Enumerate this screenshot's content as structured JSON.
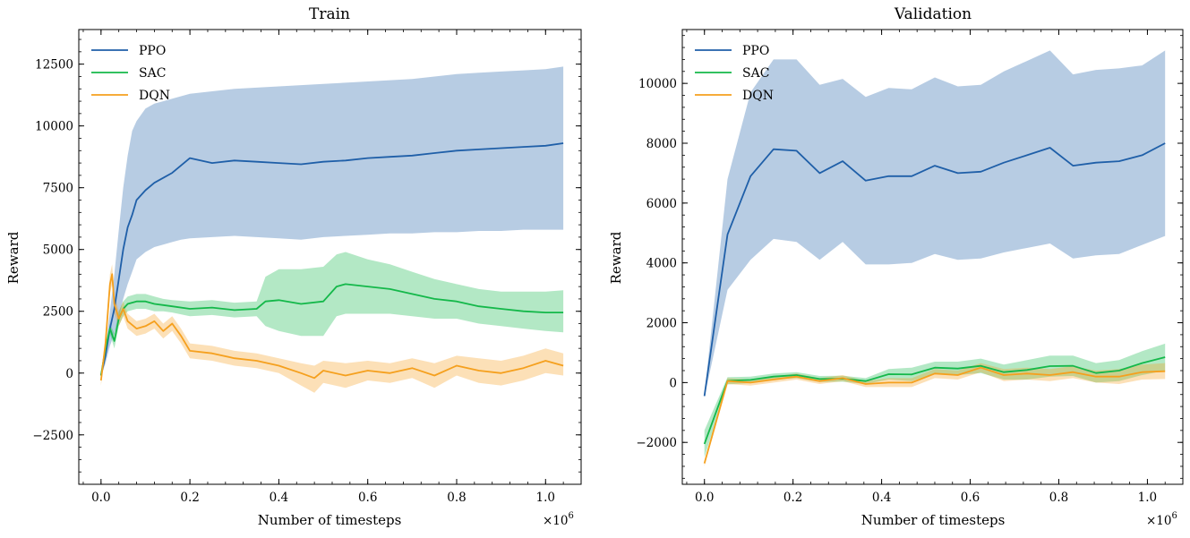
{
  "colors": {
    "PPO": "#1f5fa8",
    "SAC": "#14b84a",
    "DQN": "#f5a01e"
  },
  "chart_data": [
    {
      "type": "line",
      "title": "Train",
      "xlabel": "Number of timesteps",
      "ylabel": "Reward",
      "x_multiplier_label": "×10",
      "x_multiplier_exp": "6",
      "xlim": [
        -0.05,
        1.08
      ],
      "ylim": [
        -4500,
        13900
      ],
      "xticks": [
        0.0,
        0.2,
        0.4,
        0.6,
        0.8,
        1.0
      ],
      "xtick_labels": [
        "0.0",
        "0.2",
        "0.4",
        "0.6",
        "0.8",
        "1.0"
      ],
      "yticks": [
        -2500,
        0,
        2500,
        5000,
        7500,
        10000,
        12500
      ],
      "ytick_labels": [
        "−2500",
        "0",
        "2500",
        "5000",
        "7500",
        "10000",
        "12500"
      ],
      "legend_position": "top-left",
      "shaded_band": "spread",
      "series": [
        {
          "name": "PPO",
          "x": [
            0.0,
            0.01,
            0.02,
            0.03,
            0.04,
            0.05,
            0.06,
            0.07,
            0.08,
            0.1,
            0.12,
            0.14,
            0.16,
            0.18,
            0.2,
            0.25,
            0.3,
            0.35,
            0.4,
            0.45,
            0.5,
            0.55,
            0.6,
            0.65,
            0.7,
            0.75,
            0.8,
            0.85,
            0.9,
            0.95,
            1.0,
            1.04
          ],
          "y": [
            -100,
            700,
            1800,
            2600,
            3800,
            5000,
            5900,
            6400,
            7000,
            7400,
            7700,
            7900,
            8100,
            8400,
            8700,
            8500,
            8600,
            8550,
            8500,
            8450,
            8550,
            8600,
            8700,
            8750,
            8800,
            8900,
            9000,
            9050,
            9100,
            9150,
            9200,
            9300
          ],
          "upper": [
            -50,
            1000,
            2500,
            4000,
            5800,
            7500,
            8800,
            9800,
            10200,
            10700,
            10900,
            11000,
            11100,
            11200,
            11300,
            11400,
            11500,
            11550,
            11600,
            11650,
            11700,
            11750,
            11800,
            11850,
            11900,
            12000,
            12100,
            12150,
            12200,
            12250,
            12300,
            12400
          ],
          "lower": [
            -150,
            400,
            1100,
            1600,
            2200,
            3000,
            3600,
            4100,
            4600,
            4900,
            5100,
            5200,
            5300,
            5400,
            5450,
            5500,
            5550,
            5500,
            5450,
            5400,
            5500,
            5550,
            5600,
            5650,
            5650,
            5700,
            5700,
            5750,
            5750,
            5800,
            5800,
            5800
          ]
        },
        {
          "name": "SAC",
          "x": [
            0.0,
            0.01,
            0.02,
            0.03,
            0.04,
            0.05,
            0.06,
            0.08,
            0.1,
            0.12,
            0.14,
            0.16,
            0.2,
            0.25,
            0.3,
            0.35,
            0.37,
            0.4,
            0.45,
            0.5,
            0.53,
            0.55,
            0.6,
            0.65,
            0.7,
            0.75,
            0.8,
            0.85,
            0.9,
            0.95,
            1.0,
            1.04
          ],
          "y": [
            -100,
            1000,
            1800,
            1300,
            2200,
            2600,
            2800,
            2900,
            2900,
            2800,
            2750,
            2700,
            2600,
            2650,
            2550,
            2600,
            2900,
            2950,
            2800,
            2900,
            3500,
            3600,
            3500,
            3400,
            3200,
            3000,
            2900,
            2700,
            2600,
            2500,
            2450,
            2450
          ],
          "upper": [
            -50,
            1100,
            2000,
            1600,
            2500,
            2900,
            3100,
            3200,
            3200,
            3100,
            3000,
            2950,
            2900,
            2950,
            2850,
            2900,
            3900,
            4200,
            4200,
            4300,
            4800,
            4900,
            4600,
            4400,
            4100,
            3800,
            3600,
            3400,
            3300,
            3300,
            3300,
            3350
          ],
          "lower": [
            -150,
            900,
            1600,
            1000,
            1900,
            2300,
            2500,
            2600,
            2600,
            2500,
            2500,
            2450,
            2300,
            2350,
            2250,
            2300,
            1900,
            1700,
            1500,
            1500,
            2300,
            2400,
            2400,
            2400,
            2300,
            2200,
            2200,
            2000,
            1900,
            1800,
            1700,
            1650
          ]
        },
        {
          "name": "DQN",
          "x": [
            0.0,
            0.01,
            0.02,
            0.025,
            0.03,
            0.04,
            0.05,
            0.06,
            0.08,
            0.1,
            0.12,
            0.14,
            0.16,
            0.18,
            0.2,
            0.25,
            0.3,
            0.35,
            0.4,
            0.45,
            0.48,
            0.5,
            0.55,
            0.6,
            0.65,
            0.7,
            0.75,
            0.8,
            0.85,
            0.9,
            0.95,
            1.0,
            1.04
          ],
          "y": [
            -300,
            1200,
            3600,
            4000,
            2800,
            2200,
            2600,
            2100,
            1800,
            1900,
            2100,
            1700,
            2000,
            1500,
            900,
            800,
            600,
            500,
            300,
            0,
            -200,
            100,
            -100,
            100,
            0,
            200,
            -100,
            300,
            100,
            0,
            200,
            500,
            300
          ],
          "upper": [
            -100,
            1500,
            4000,
            4400,
            3200,
            2500,
            2900,
            2400,
            2100,
            2200,
            2400,
            2000,
            2300,
            1800,
            1200,
            1100,
            900,
            800,
            600,
            400,
            300,
            500,
            400,
            500,
            400,
            600,
            400,
            700,
            600,
            500,
            700,
            1000,
            800
          ],
          "lower": [
            -500,
            900,
            3200,
            3600,
            2400,
            1900,
            2300,
            1800,
            1500,
            1600,
            1800,
            1400,
            1700,
            1200,
            600,
            500,
            300,
            200,
            0,
            -500,
            -800,
            -400,
            -600,
            -300,
            -400,
            -200,
            -600,
            -100,
            -400,
            -500,
            -300,
            0,
            -100
          ]
        }
      ]
    },
    {
      "type": "line",
      "title": "Validation",
      "xlabel": "Number of timesteps",
      "ylabel": "Reward",
      "x_multiplier_label": "×10",
      "x_multiplier_exp": "6",
      "xlim": [
        -0.05,
        1.08
      ],
      "ylim": [
        -3400,
        11800
      ],
      "xticks": [
        0.0,
        0.2,
        0.4,
        0.6,
        0.8,
        1.0
      ],
      "xtick_labels": [
        "0.0",
        "0.2",
        "0.4",
        "0.6",
        "0.8",
        "1.0"
      ],
      "yticks": [
        -2000,
        0,
        2000,
        4000,
        6000,
        8000,
        10000
      ],
      "ytick_labels": [
        "−2000",
        "0",
        "2000",
        "4000",
        "6000",
        "8000",
        "10000"
      ],
      "legend_position": "top-left",
      "shaded_band": "spread",
      "series": [
        {
          "name": "PPO",
          "x": [
            0.0,
            0.052,
            0.104,
            0.156,
            0.208,
            0.26,
            0.312,
            0.364,
            0.416,
            0.468,
            0.52,
            0.572,
            0.624,
            0.676,
            0.728,
            0.78,
            0.832,
            0.884,
            0.936,
            0.988,
            1.04
          ],
          "y": [
            -450,
            4950,
            6900,
            7800,
            7750,
            7000,
            7400,
            6750,
            6900,
            6900,
            7250,
            7000,
            7050,
            7350,
            7600,
            7850,
            7250,
            7350,
            7400,
            7600,
            8000
          ],
          "upper": [
            -400,
            6800,
            9700,
            10800,
            10800,
            9950,
            10150,
            9550,
            9850,
            9800,
            10200,
            9900,
            9950,
            10400,
            10750,
            11100,
            10300,
            10450,
            10500,
            10600,
            11100
          ],
          "lower": [
            -500,
            3100,
            4100,
            4800,
            4700,
            4100,
            4700,
            3950,
            3950,
            4000,
            4300,
            4100,
            4150,
            4350,
            4500,
            4650,
            4150,
            4250,
            4300,
            4600,
            4900
          ]
        },
        {
          "name": "SAC",
          "x": [
            0.0,
            0.052,
            0.104,
            0.156,
            0.208,
            0.26,
            0.312,
            0.364,
            0.416,
            0.468,
            0.52,
            0.572,
            0.624,
            0.676,
            0.728,
            0.78,
            0.832,
            0.884,
            0.936,
            0.988,
            1.04
          ],
          "y": [
            -2050,
            60,
            90,
            200,
            250,
            120,
            130,
            50,
            280,
            270,
            500,
            470,
            560,
            350,
            420,
            550,
            560,
            320,
            400,
            650,
            850
          ],
          "upper": [
            -1600,
            180,
            200,
            300,
            350,
            220,
            230,
            150,
            450,
            500,
            700,
            700,
            800,
            600,
            750,
            900,
            900,
            650,
            750,
            1050,
            1300
          ],
          "lower": [
            -2500,
            -60,
            -20,
            100,
            150,
            20,
            30,
            -50,
            100,
            50,
            300,
            250,
            320,
            100,
            100,
            200,
            220,
            0,
            50,
            250,
            400
          ]
        },
        {
          "name": "DQN",
          "x": [
            0.0,
            0.052,
            0.104,
            0.156,
            0.208,
            0.26,
            0.312,
            0.364,
            0.416,
            0.468,
            0.52,
            0.572,
            0.624,
            0.676,
            0.728,
            0.78,
            0.832,
            0.884,
            0.936,
            0.988,
            1.04
          ],
          "y": [
            -2700,
            50,
            0,
            100,
            200,
            50,
            150,
            -50,
            0,
            0,
            300,
            250,
            500,
            250,
            300,
            250,
            350,
            200,
            200,
            350,
            380
          ],
          "upper": [
            -2600,
            150,
            100,
            200,
            300,
            150,
            250,
            50,
            150,
            150,
            450,
            400,
            650,
            450,
            500,
            450,
            550,
            400,
            450,
            600,
            650
          ],
          "lower": [
            -2800,
            -50,
            -100,
            0,
            100,
            -50,
            50,
            -150,
            -150,
            -150,
            150,
            100,
            350,
            50,
            100,
            50,
            150,
            0,
            -50,
            100,
            120
          ]
        }
      ]
    }
  ]
}
